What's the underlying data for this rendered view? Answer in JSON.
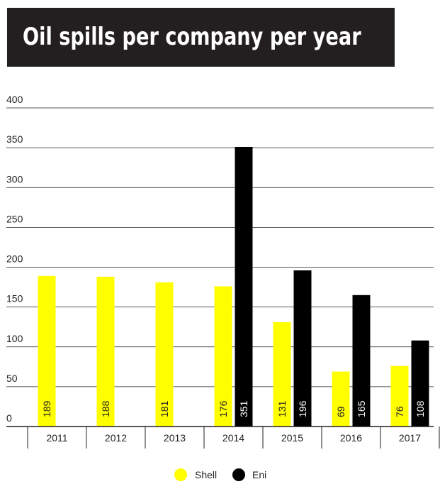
{
  "chart_data": {
    "type": "bar",
    "title": "Oil spills per company per year",
    "categories": [
      "2011",
      "2012",
      "2013",
      "2014",
      "2015",
      "2016",
      "2017"
    ],
    "series": [
      {
        "name": "Shell",
        "color": "#ffff00",
        "label_color": "#231f20",
        "values": [
          189,
          188,
          181,
          176,
          131,
          69,
          76
        ]
      },
      {
        "name": "Eni",
        "color": "#000000",
        "label_color": "#ffffff",
        "values": [
          null,
          null,
          null,
          351,
          196,
          165,
          108
        ]
      }
    ],
    "yticks": [
      "0",
      "50",
      "100",
      "150",
      "200",
      "250",
      "300",
      "350",
      "400"
    ],
    "ylim": [
      0,
      400
    ],
    "grid": true,
    "legend": "bottom-center"
  }
}
